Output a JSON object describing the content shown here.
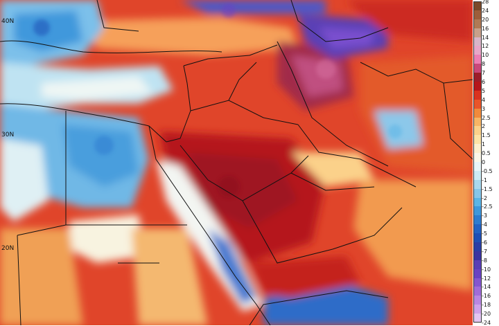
{
  "map": {
    "lat_labels": [
      "40N",
      "30N",
      "20N"
    ],
    "colors": {
      "deep_red": "#b5151b",
      "red": "#d9321f",
      "orange_red": "#e8552a",
      "orange": "#f08a3c",
      "light_orange": "#f7b565",
      "cream": "#fde3a6",
      "white": "#f7f7f2",
      "light_blue": "#a9d8ee",
      "sky_blue": "#5cb5e6",
      "blue": "#2e7cd0",
      "dark_blue": "#1f4fb5",
      "purple": "#6a43c2",
      "maroon": "#8c1f3a",
      "pink_magenta": "#b8527f",
      "border_line": "#111111"
    }
  },
  "legend": {
    "ticks": [
      "28",
      "24",
      "20",
      "16",
      "14",
      "12",
      "10",
      "8",
      "7",
      "6",
      "5",
      "4",
      "3",
      "2.5",
      "2",
      "1.5",
      "1",
      "0.5",
      "0",
      "-0.5",
      "-1",
      "-1.5",
      "-2",
      "-2.5",
      "-3",
      "-4",
      "-5",
      "-6",
      "-7",
      "-8",
      "-10",
      "-12",
      "-14",
      "-16",
      "-18",
      "-20",
      "-24"
    ],
    "swatch_colors": [
      "#7a4a2a",
      "#9c5e3a",
      "#b07a55",
      "#c8a08a",
      "#d8b5c8",
      "#e7a7c8",
      "#ec7fb5",
      "#c9487a",
      "#9c1d2a",
      "#b5151b",
      "#d9321f",
      "#e8552a",
      "#f08a3c",
      "#f7b565",
      "#fbd18a",
      "#fde3a6",
      "#fdf0cf",
      "#fbf8ea",
      "#e9f5f8",
      "#cdebf4",
      "#a9d8ee",
      "#86c6ea",
      "#5cb5e6",
      "#3f98dc",
      "#2e7cd0",
      "#2462c3",
      "#1f4fb5",
      "#2a3ea6",
      "#3b33a0",
      "#5a3fb5",
      "#6a43c2",
      "#8456cf",
      "#a06cd9",
      "#b987e2",
      "#cfa3ea",
      "#e3c6f2"
    ]
  }
}
